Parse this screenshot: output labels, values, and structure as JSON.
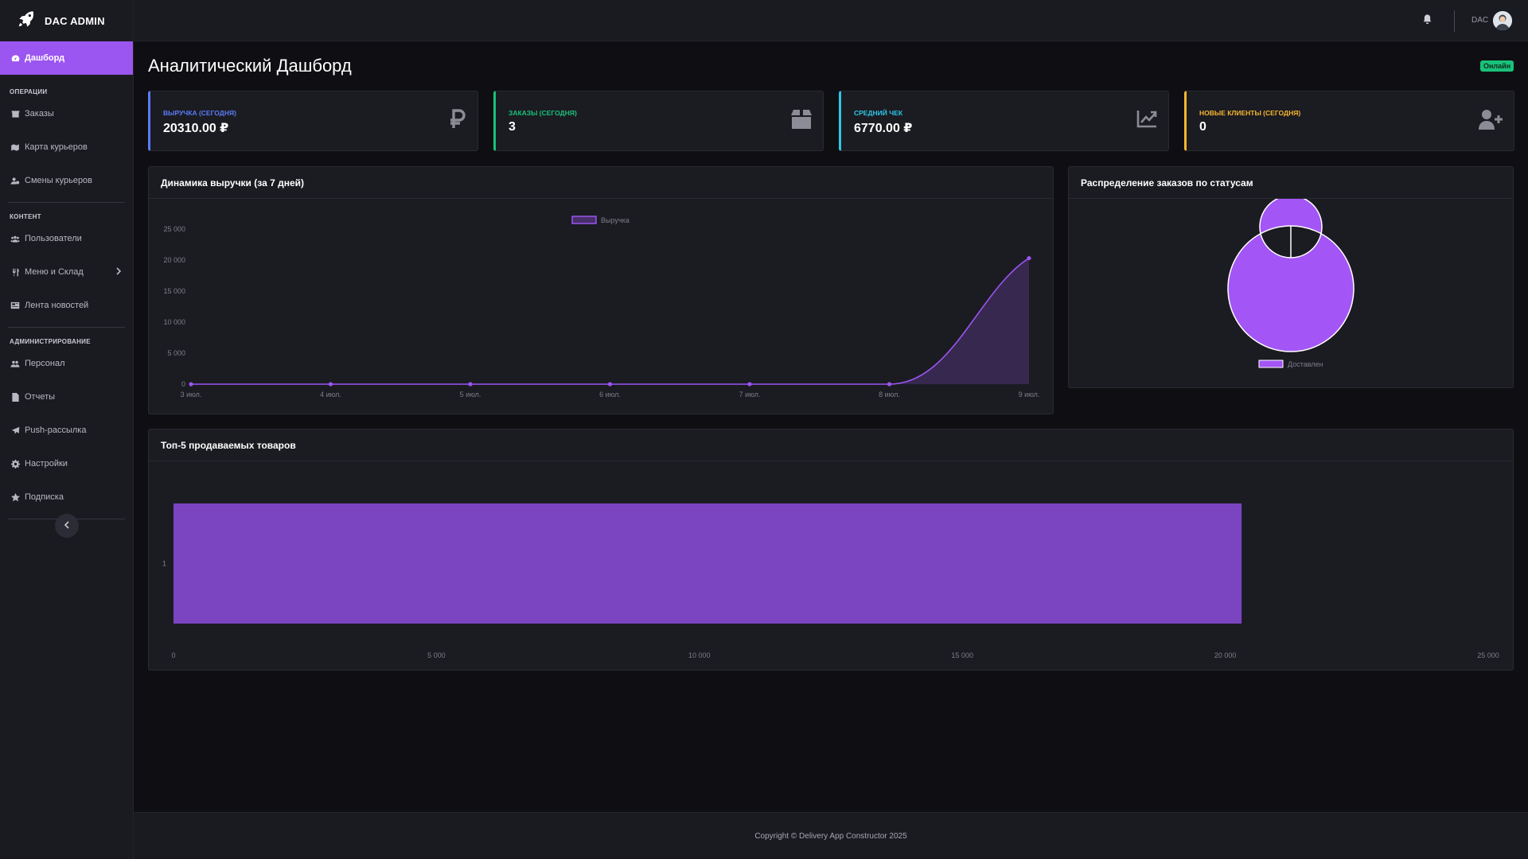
{
  "app": {
    "brand": "DAC ADMIN"
  },
  "sidebar": {
    "active": {
      "label": "Дашборд",
      "icon": "gauge-icon"
    },
    "sections": [
      {
        "label": "ОПЕРАЦИИ",
        "items": [
          {
            "label": "Заказы",
            "icon": "box-icon"
          },
          {
            "label": "Карта курьеров",
            "icon": "map-icon"
          },
          {
            "label": "Смены курьеров",
            "icon": "user-clock-icon"
          }
        ]
      },
      {
        "label": "КОНТЕНТ",
        "items": [
          {
            "label": "Пользователи",
            "icon": "users-icon"
          },
          {
            "label": "Меню и Склад",
            "icon": "utensils-icon",
            "has_submenu": true
          },
          {
            "label": "Лента новостей",
            "icon": "newspaper-icon"
          }
        ]
      },
      {
        "label": "АДМИНИСТРИРОВАНИЕ",
        "items": [
          {
            "label": "Персонал",
            "icon": "staff-icon"
          },
          {
            "label": "Отчеты",
            "icon": "file-icon"
          },
          {
            "label": "Push-рассылка",
            "icon": "paper-plane-icon"
          },
          {
            "label": "Настройки",
            "icon": "gear-icon"
          },
          {
            "label": "Подписка",
            "icon": "star-icon"
          }
        ]
      }
    ]
  },
  "topbar": {
    "user": "DAC"
  },
  "page": {
    "title": "Аналитический Дашборд",
    "status_badge": "Онлайн"
  },
  "stats": [
    {
      "label": "ВЫРУЧКА (СЕГОДНЯ)",
      "value": "20310.00 ₽",
      "color": "#5b7cf5",
      "icon": "ruble-icon"
    },
    {
      "label": "ЗАКАЗЫ (СЕГОДНЯ)",
      "value": "3",
      "color": "#19c27a",
      "icon": "box-icon"
    },
    {
      "label": "СРЕДНИЙ ЧЕК",
      "value": "6770.00 ₽",
      "color": "#2ec6e6",
      "icon": "chart-line-icon"
    },
    {
      "label": "НОВЫЕ КЛИЕНТЫ (СЕГОДНЯ)",
      "value": "0",
      "color": "#f5b82e",
      "icon": "user-plus-icon"
    }
  ],
  "cards": {
    "revenue_title": "Динамика выручки (за 7 дней)",
    "status_title": "Распределение заказов по статусам",
    "top_title": "Топ-5 продаваемых товаров"
  },
  "footer": {
    "text": "Copyright © Delivery App Constructor 2025"
  },
  "chart_data": [
    {
      "type": "area",
      "title": "Динамика выручки (за 7 дней)",
      "categories": [
        "3 июл.",
        "4 июл.",
        "5 июл.",
        "6 июл.",
        "7 июл.",
        "8 июл.",
        "9 июл."
      ],
      "series": [
        {
          "name": "Выручка",
          "values": [
            0,
            0,
            0,
            0,
            0,
            0,
            20310
          ]
        }
      ],
      "y_ticks": [
        "0",
        "5 000",
        "10 000",
        "15 000",
        "20 000",
        "25 000"
      ],
      "ylim": [
        0,
        25000
      ],
      "legend": "top-center",
      "color": "#9b55f0"
    },
    {
      "type": "pie",
      "title": "Распределение заказов по статусам",
      "labels": [
        "Доставлен"
      ],
      "values": [
        3
      ],
      "legend": "bottom",
      "color": "#a355f5"
    },
    {
      "type": "bar",
      "orientation": "horizontal",
      "title": "Топ-5 продаваемых товаров",
      "categories": [
        "1"
      ],
      "values": [
        20310
      ],
      "x_ticks": [
        "0",
        "5 000",
        "10 000",
        "15 000",
        "20 000",
        "25 000"
      ],
      "xlim": [
        0,
        25000
      ],
      "color": "#7b45c2"
    }
  ]
}
